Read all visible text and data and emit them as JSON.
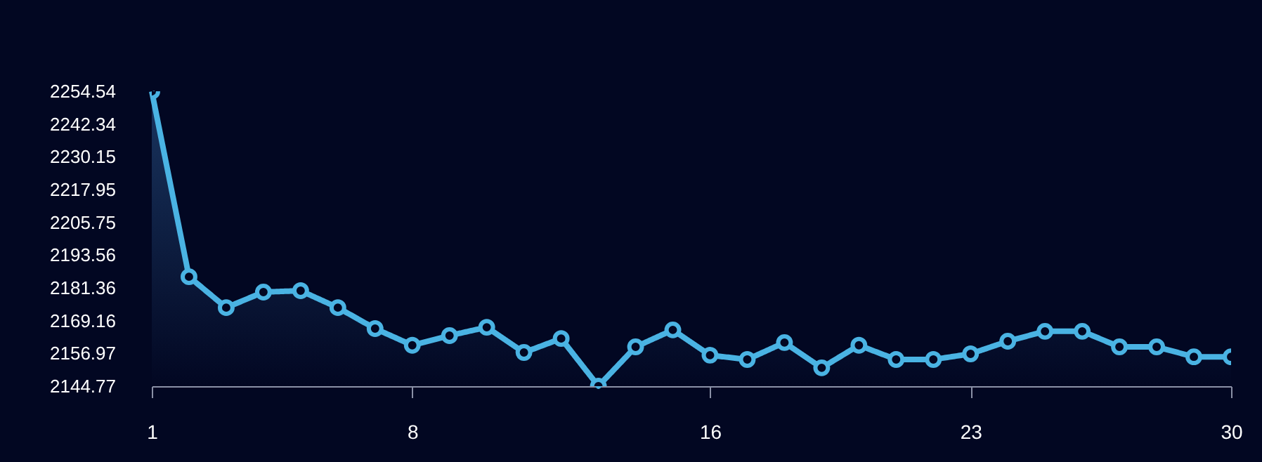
{
  "chart_data": {
    "type": "area",
    "x": [
      1,
      2,
      3,
      4,
      5,
      6,
      7,
      8,
      9,
      10,
      11,
      12,
      13,
      14,
      15,
      16,
      17,
      18,
      19,
      20,
      21,
      22,
      23,
      24,
      25,
      26,
      27,
      28,
      29,
      30
    ],
    "series": [
      {
        "color": "#4ab3e3",
        "values": [
          2254.5,
          2185.5,
          2174.0,
          2179.8,
          2180.3,
          2174.0,
          2166.2,
          2160.0,
          2163.6,
          2166.7,
          2157.3,
          2162.5,
          2144.8,
          2159.4,
          2165.7,
          2156.3,
          2154.7,
          2161.0,
          2151.6,
          2160.0,
          2154.7,
          2154.7,
          2156.8,
          2161.5,
          2165.2,
          2165.2,
          2159.4,
          2159.4,
          2155.7,
          2155.7
        ]
      }
    ],
    "xlim": [
      1,
      30
    ],
    "xticks": [
      1,
      8,
      16,
      23,
      30
    ],
    "ylim": [
      2144.77,
      2254.54
    ],
    "yticks": [
      2144.77,
      2156.97,
      2169.16,
      2181.36,
      2193.56,
      2205.75,
      2217.95,
      2230.15,
      2242.34,
      2254.54
    ],
    "grid": false,
    "legend": false,
    "marker": "circle",
    "line_style": "solid"
  }
}
